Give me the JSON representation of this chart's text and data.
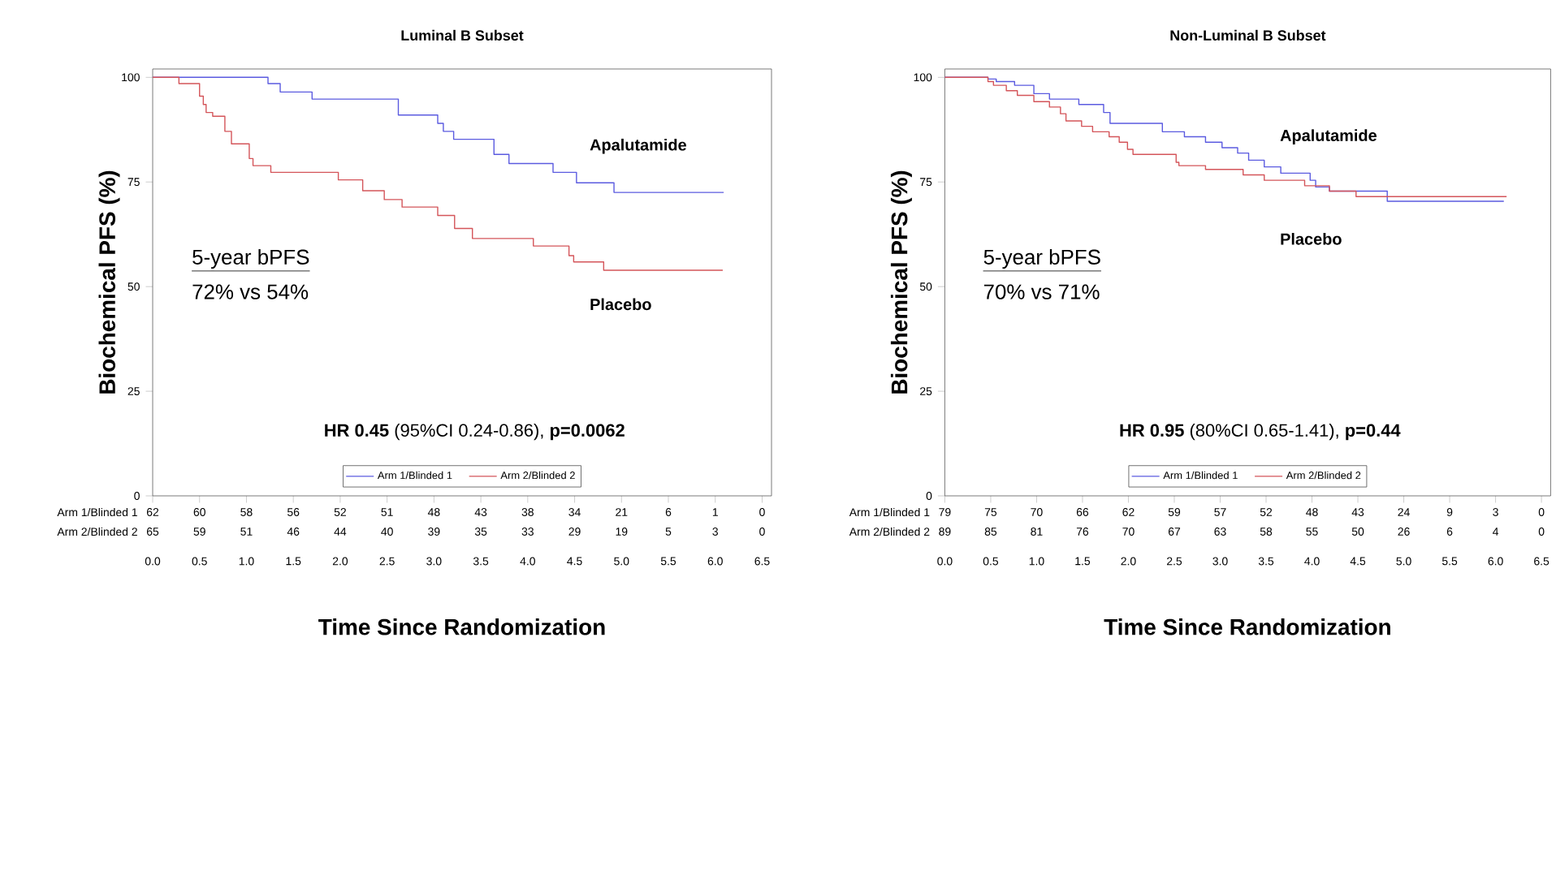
{
  "chart_data": [
    {
      "type": "step",
      "title": "Luminal B Subset",
      "xlabel": "Time Since Randomization",
      "ylabel": "Biochemical PFS (%)",
      "xlim": [
        0,
        6.6
      ],
      "ylim": [
        0,
        102
      ],
      "xticks": [
        {
          "value": 0,
          "label": "0.0"
        },
        0.5,
        {
          "value": 1,
          "label": "1.0"
        },
        1.5,
        {
          "value": 2,
          "label": "2.0"
        },
        2.5,
        {
          "value": 3,
          "label": "3.0"
        },
        3.5,
        {
          "value": 4,
          "label": "4.0"
        },
        4.5,
        {
          "value": 5,
          "label": "5.0"
        },
        5.5,
        {
          "value": 6,
          "label": "6.0"
        },
        6.5
      ],
      "yticks": [
        0,
        25,
        50,
        75,
        100
      ],
      "grid": false,
      "legend": "bottom",
      "marker": "none",
      "series": [
        {
          "name": "Arm 1/Blinded 1",
          "color": "#5b5be0",
          "x": [
            0,
            1.23,
            1.36,
            1.7,
            2.62,
            3.04,
            3.1,
            3.21,
            3.64,
            3.8,
            4.27,
            4.52,
            4.92,
            6.09
          ],
          "values": [
            100,
            98.5,
            96.5,
            94.8,
            91.0,
            89.0,
            87.1,
            85.2,
            81.6,
            79.4,
            77.3,
            74.8,
            72.5,
            72.5
          ]
        },
        {
          "name": "Arm 2/Blinded 2",
          "color": "#d4555a",
          "x": [
            0,
            0.28,
            0.5,
            0.54,
            0.57,
            0.64,
            0.77,
            0.84,
            1.03,
            1.07,
            1.26,
            1.98,
            2.24,
            2.47,
            2.66,
            3.04,
            3.22,
            3.41,
            4.06,
            4.44,
            4.49,
            4.81,
            6.08
          ],
          "values": [
            100,
            98.5,
            95.5,
            93.5,
            91.6,
            90.7,
            87.1,
            84.1,
            80.6,
            78.9,
            77.3,
            75.5,
            72.9,
            70.8,
            69.0,
            67.0,
            63.9,
            61.5,
            59.7,
            57.4,
            55.9,
            53.9,
            53.9
          ]
        }
      ],
      "annotations": [
        "5-year bPFS",
        "72% vs 54%",
        "**HR 0.45** (95%CI 0.24-0.86), **p=0.0062**",
        "Apalutamide",
        "Placebo",
        "Arm 1/Blinded 1",
        "62",
        "60",
        "58",
        "56",
        "52",
        "51",
        "48",
        "43",
        "38",
        "34",
        "21",
        "6",
        "1",
        "0",
        "Arm 2/Blinded 2",
        "65",
        "59",
        "51",
        "46",
        "44",
        "40",
        "39",
        "35",
        "33",
        "29",
        "19",
        "5",
        "3",
        "0"
      ]
    },
    {
      "type": "step",
      "title": "Non-Luminal B Subset",
      "xlabel": "Time Since Randomization",
      "ylabel": "Biochemical PFS (%)",
      "xlim": [
        0,
        6.6
      ],
      "ylim": [
        0,
        102
      ],
      "xticks": [
        {
          "value": 0,
          "label": "0.0"
        },
        0.5,
        {
          "value": 1,
          "label": "1.0"
        },
        1.5,
        {
          "value": 2,
          "label": "2.0"
        },
        2.5,
        {
          "value": 3,
          "label": "3.0"
        },
        3.5,
        {
          "value": 4,
          "label": "4.0"
        },
        4.5,
        {
          "value": 5,
          "label": "5.0"
        },
        5.5,
        {
          "value": 6,
          "label": "6.0"
        },
        6.5
      ],
      "yticks": [
        0,
        25,
        50,
        75,
        100
      ],
      "grid": false,
      "legend": "bottom",
      "marker": "none",
      "series": [
        {
          "name": "Arm 1/Blinded 1",
          "color": "#5b5be0",
          "x": [
            0,
            0.47,
            0.56,
            0.76,
            0.97,
            1.14,
            1.46,
            1.73,
            1.8,
            2.37,
            2.61,
            2.84,
            3.02,
            3.19,
            3.31,
            3.48,
            3.66,
            3.98,
            4.04,
            4.19,
            4.82,
            6.09
          ],
          "values": [
            100,
            99.6,
            99,
            98.1,
            96.1,
            94.8,
            93.5,
            91.6,
            89.0,
            87.0,
            85.8,
            84.5,
            83.2,
            81.9,
            80.2,
            78.6,
            77.1,
            75.4,
            73.8,
            72.8,
            70.4,
            70.4
          ]
        },
        {
          "name": "Arm 2/Blinded 2",
          "color": "#d4555a",
          "x": [
            0,
            0.47,
            0.53,
            0.67,
            0.79,
            0.97,
            1.14,
            1.26,
            1.32,
            1.49,
            1.61,
            1.79,
            1.9,
            1.99,
            2.05,
            2.52,
            2.55,
            2.84,
            3.25,
            3.48,
            3.92,
            4.19,
            4.48,
            6.12
          ],
          "values": [
            100,
            99,
            98.1,
            96.8,
            95.7,
            94.2,
            92.9,
            91.3,
            89.6,
            88.3,
            87.0,
            85.8,
            84.5,
            82.8,
            81.6,
            79.7,
            78.9,
            78.0,
            76.7,
            75.4,
            74.1,
            72.8,
            71.5,
            71.5
          ]
        }
      ],
      "annotations": [
        "5-year bPFS",
        "70% vs 71%",
        "**HR 0.95** (80%CI 0.65-1.41), **p=0.44**",
        "Apalutamide",
        "Placebo",
        "Arm 1/Blinded 1",
        "79",
        "75",
        "70",
        "66",
        "62",
        "59",
        "57",
        "52",
        "48",
        "43",
        "24",
        "9",
        "3",
        "0",
        "Arm 2/Blinded 2",
        "89",
        "85",
        "81",
        "76",
        "70",
        "67",
        "63",
        "58",
        "55",
        "50",
        "26",
        "6",
        "4",
        "0"
      ]
    }
  ]
}
